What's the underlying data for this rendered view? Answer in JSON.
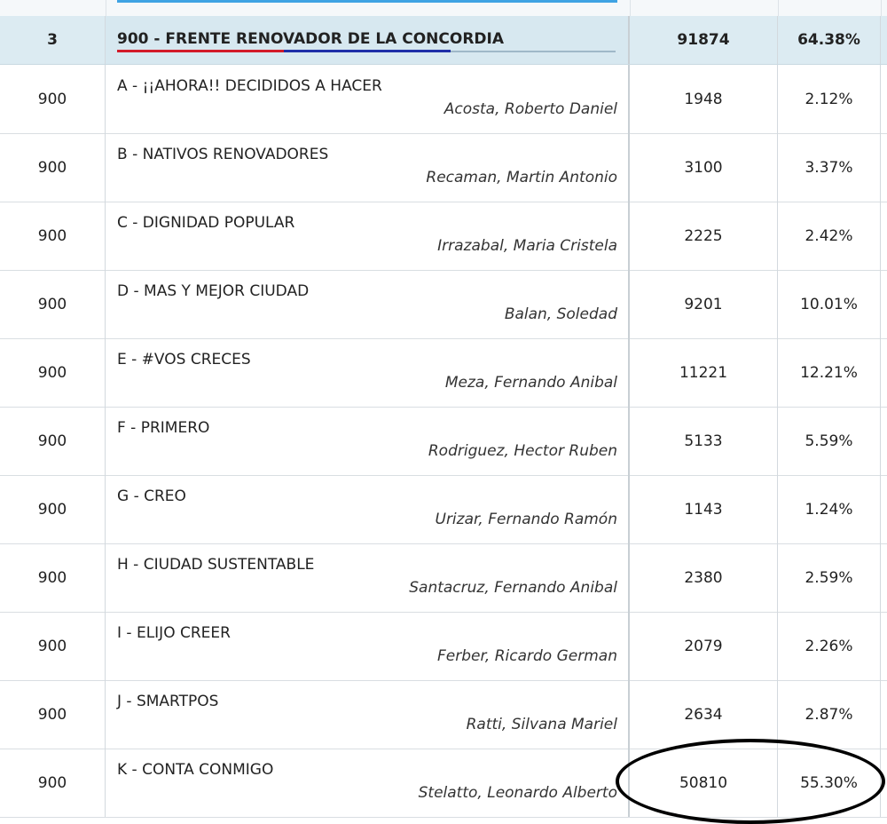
{
  "party": {
    "num": "3",
    "title": "900 - FRENTE RENOVADOR DE LA CONCORDIA",
    "votes": "91874",
    "pct": "64.38%"
  },
  "lists": [
    {
      "num": "900",
      "name": "A - ¡¡AHORA!! DECIDIDOS A HACER",
      "candidate": "Acosta, Roberto Daniel",
      "votes": "1948",
      "pct": "2.12%"
    },
    {
      "num": "900",
      "name": "B - NATIVOS RENOVADORES",
      "candidate": "Recaman, Martin Antonio",
      "votes": "3100",
      "pct": "3.37%"
    },
    {
      "num": "900",
      "name": "C - DIGNIDAD POPULAR",
      "candidate": "Irrazabal, Maria Cristela",
      "votes": "2225",
      "pct": "2.42%"
    },
    {
      "num": "900",
      "name": "D - MAS Y MEJOR CIUDAD",
      "candidate": "Balan, Soledad",
      "votes": "9201",
      "pct": "10.01%"
    },
    {
      "num": "900",
      "name": "E - #VOS CRECES",
      "candidate": "Meza, Fernando Anibal",
      "votes": "11221",
      "pct": "12.21%"
    },
    {
      "num": "900",
      "name": "F - PRIMERO",
      "candidate": "Rodriguez, Hector Ruben",
      "votes": "5133",
      "pct": "5.59%"
    },
    {
      "num": "900",
      "name": "G - CREO",
      "candidate": "Urizar, Fernando Ramón",
      "votes": "1143",
      "pct": "1.24%"
    },
    {
      "num": "900",
      "name": "H - CIUDAD SUSTENTABLE",
      "candidate": "Santacruz, Fernando Anibal",
      "votes": "2380",
      "pct": "2.59%"
    },
    {
      "num": "900",
      "name": "I - ELIJO CREER",
      "candidate": "Ferber, Ricardo German",
      "votes": "2079",
      "pct": "2.26%"
    },
    {
      "num": "900",
      "name": "J - SMARTPOS",
      "candidate": "Ratti, Silvana Mariel",
      "votes": "2634",
      "pct": "2.87%"
    },
    {
      "num": "900",
      "name": "K - CONTA CONMIGO",
      "candidate": "Stelatto, Leonardo Alberto",
      "votes": "50810",
      "pct": "55.30%"
    }
  ]
}
